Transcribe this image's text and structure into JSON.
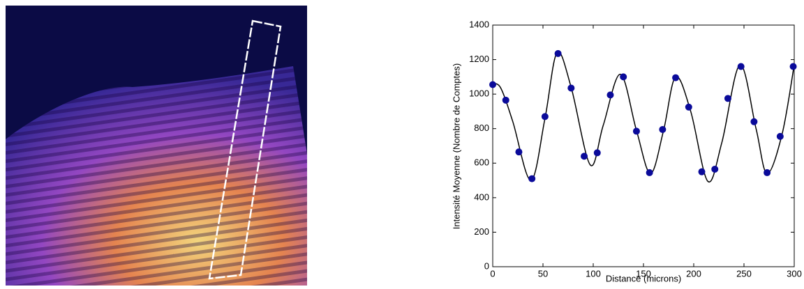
{
  "chart_data": {
    "type": "scatter",
    "xlabel": "Distance (microns)",
    "ylabel": "Intensité Moyenne (Nombre de Comptes)",
    "x": [
      0,
      13,
      26,
      39,
      52,
      65,
      78,
      91,
      104,
      117,
      130,
      143,
      156,
      169,
      182,
      195,
      208,
      221,
      234,
      247,
      260,
      273,
      286,
      299
    ],
    "values": [
      1055,
      965,
      665,
      510,
      870,
      1235,
      1035,
      640,
      660,
      995,
      1100,
      785,
      545,
      795,
      1095,
      925,
      550,
      565,
      975,
      1160,
      840,
      545,
      755,
      1160
    ],
    "color": "#0a0a9a",
    "curve": {
      "x": [
        0,
        8,
        20,
        38,
        52,
        64,
        78,
        97,
        110,
        127,
        143,
        157,
        170,
        182,
        197,
        214,
        228,
        246,
        262,
        273,
        288,
        300
      ],
      "values": [
        1060,
        1035,
        840,
        500,
        860,
        1240,
        1040,
        590,
        820,
        1115,
        790,
        540,
        790,
        1100,
        900,
        495,
        720,
        1170,
        800,
        540,
        770,
        1170
      ],
      "color": "#000000"
    },
    "xlim": [
      0,
      300
    ],
    "xticks": [
      0,
      50,
      100,
      150,
      200,
      250,
      300
    ],
    "ylim": [
      0,
      1400
    ],
    "yticks": [
      0,
      200,
      400,
      600,
      800,
      1000,
      1200,
      1400
    ]
  }
}
